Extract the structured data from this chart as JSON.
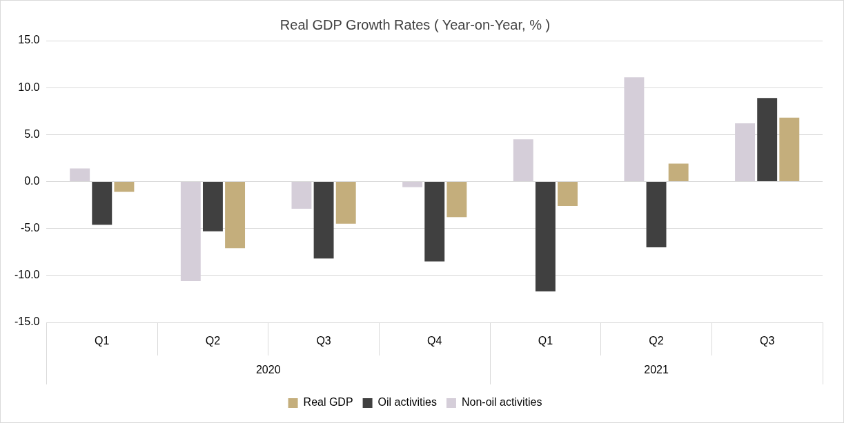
{
  "chart_data": {
    "type": "bar",
    "title": "Real GDP Growth Rates ( Year-on-Year, % )",
    "categories": [
      "Q1",
      "Q2",
      "Q3",
      "Q4",
      "Q1",
      "Q2",
      "Q3"
    ],
    "annotations": [
      "2020",
      "2021"
    ],
    "series": [
      {
        "name": "Non-oil activities",
        "color": "#d5ced9",
        "values": [
          1.4,
          -10.6,
          -2.9,
          -0.6,
          4.5,
          11.1,
          6.2
        ]
      },
      {
        "name": "Oil activities",
        "color": "#404040",
        "values": [
          -4.6,
          -5.3,
          -8.2,
          -8.5,
          -11.7,
          -7.0,
          8.9
        ]
      },
      {
        "name": "Real GDP",
        "color": "#c4ae7c",
        "values": [
          -1.1,
          -7.1,
          -4.5,
          -3.8,
          -2.6,
          1.9,
          6.8
        ]
      }
    ],
    "ylim": [
      -15,
      15
    ],
    "yticks": [
      {
        "value": -15,
        "label": "-15.0"
      },
      {
        "value": -10,
        "label": "-10.0"
      },
      {
        "value": -5,
        "label": "-5.0"
      },
      {
        "value": 0,
        "label": "0.0"
      },
      {
        "value": 5,
        "label": "5.0"
      },
      {
        "value": 10,
        "label": "10.0"
      },
      {
        "value": 15,
        "label": "15.0"
      }
    ],
    "grid": "y",
    "legend": "bottom"
  }
}
